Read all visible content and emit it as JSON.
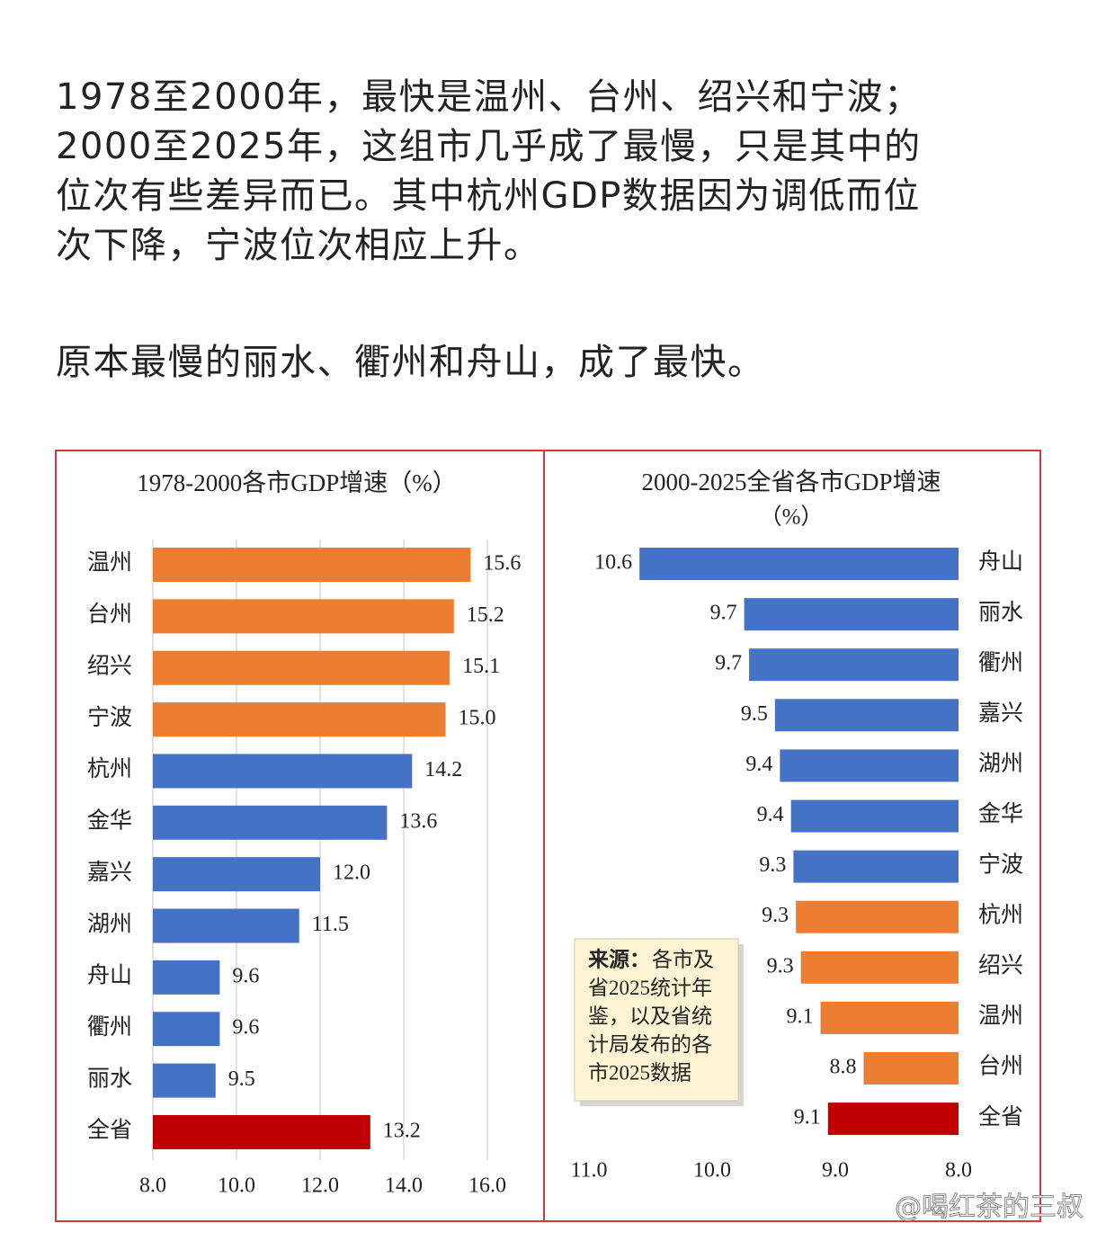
{
  "article": {
    "paragraphs": [
      [
        "1978至2000年，最快是温州、台州、绍兴和宁波；",
        "2000至2025年，这组市几乎成了最慢，只是其中的",
        "位次有些差异而已。其中杭州GDP数据因为调低而位",
        "次下降，宁波位次相应上升。"
      ],
      [
        "原本最慢的丽水、衢州和舟山，成了最快。"
      ]
    ]
  },
  "chart_data": [
    {
      "type": "bar",
      "orientation": "horizontal",
      "title": "1978-2000各市GDP增速（%）",
      "categories": [
        "温州",
        "台州",
        "绍兴",
        "宁波",
        "杭州",
        "金华",
        "嘉兴",
        "湖州",
        "舟山",
        "衢州",
        "丽水",
        "全省"
      ],
      "values": [
        15.6,
        15.2,
        15.1,
        15.0,
        14.2,
        13.6,
        12.0,
        11.5,
        9.6,
        9.6,
        9.5,
        13.2
      ],
      "value_labels": [
        "15.6",
        "15.2",
        "15.1",
        "15.0",
        "14.2",
        "13.6",
        "12.0",
        "11.5",
        "9.6",
        "9.6",
        "9.5",
        "13.2"
      ],
      "colors": [
        "#ed7d31",
        "#ed7d31",
        "#ed7d31",
        "#ed7d31",
        "#4472c4",
        "#4472c4",
        "#4472c4",
        "#4472c4",
        "#4472c4",
        "#4472c4",
        "#4472c4",
        "#c00000"
      ],
      "xlim": [
        8,
        16
      ],
      "xticks": [
        {
          "value": 8,
          "label": "8.0"
        },
        {
          "value": 10,
          "label": "10.0"
        },
        {
          "value": 12,
          "label": "12.0"
        },
        {
          "value": 14,
          "label": "14.0"
        },
        {
          "value": 16,
          "label": "16.0"
        }
      ],
      "grid": true
    },
    {
      "type": "bar",
      "orientation": "horizontal",
      "title": "2000-2025全省各市GDP增速",
      "subtitle": "（%）",
      "categories": [
        "舟山",
        "丽水",
        "衢州",
        "嘉兴",
        "湖州",
        "金华",
        "宁波",
        "杭州",
        "绍兴",
        "温州",
        "台州",
        "全省"
      ],
      "values": [
        10.59,
        9.74,
        9.7,
        9.49,
        9.45,
        9.36,
        9.34,
        9.32,
        9.28,
        9.12,
        8.77,
        9.06
      ],
      "value_labels": [
        "10.6",
        "9.7",
        "9.7",
        "9.5",
        "9.4",
        "9.4",
        "9.3",
        "9.3",
        "9.3",
        "9.1",
        "8.8",
        "9.1"
      ],
      "colors": [
        "#4472c4",
        "#4472c4",
        "#4472c4",
        "#4472c4",
        "#4472c4",
        "#4472c4",
        "#4472c4",
        "#ed7d31",
        "#ed7d31",
        "#ed7d31",
        "#ed7d31",
        "#c00000"
      ],
      "xlim": [
        11,
        8
      ],
      "xticks": [
        {
          "value": 11,
          "label": "11.0"
        },
        {
          "value": 10,
          "label": "10.0"
        },
        {
          "value": 9,
          "label": "9.0"
        },
        {
          "value": 8,
          "label": "8.0"
        }
      ],
      "grid": false,
      "source": {
        "label": "来源：",
        "lines": [
          "各市及",
          "省2025统计年",
          "鉴，以及省统",
          "计局发布的各",
          "市2025数据"
        ]
      }
    }
  ],
  "watermark": "@喝红茶的三叔"
}
